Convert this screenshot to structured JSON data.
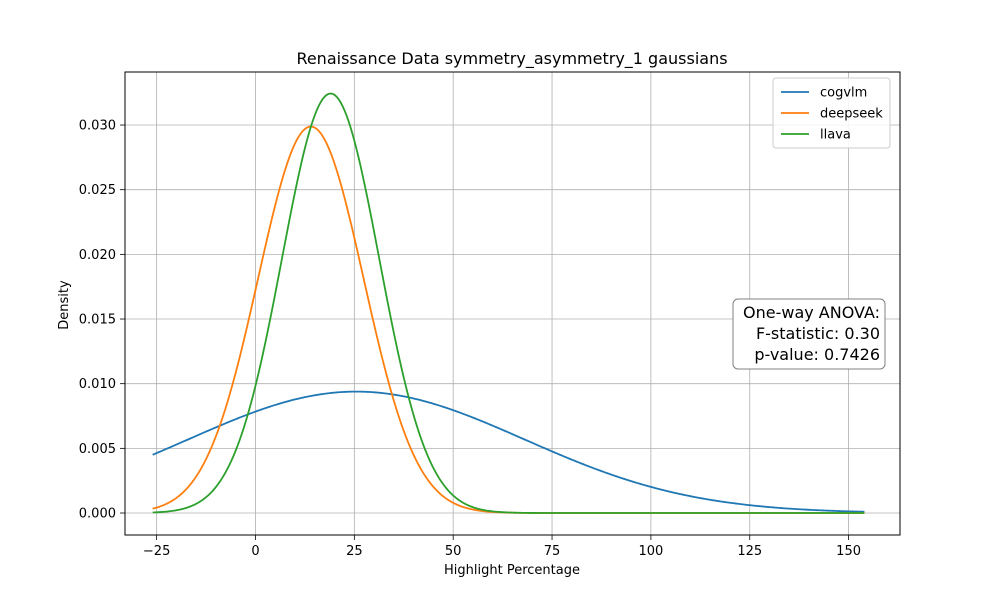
{
  "chart_data": {
    "type": "line",
    "title": "Renaissance Data symmetry_asymmetry_1 gaussians",
    "xlabel": "Highlight Percentage",
    "ylabel": "Density",
    "xlim": [
      -33,
      163
    ],
    "ylim": [
      -0.0017,
      0.0341
    ],
    "x_ticks": [
      -25,
      0,
      25,
      50,
      75,
      100,
      125,
      150
    ],
    "x_tick_labels": [
      "−25",
      "0",
      "25",
      "50",
      "75",
      "100",
      "125",
      "150"
    ],
    "y_ticks": [
      0.0,
      0.005,
      0.01,
      0.015,
      0.02,
      0.025,
      0.03
    ],
    "y_tick_labels": [
      "0.000",
      "0.005",
      "0.010",
      "0.015",
      "0.020",
      "0.025",
      "0.030"
    ],
    "grid": true,
    "legend_position": "top-right",
    "x_range": [
      -26,
      154
    ],
    "series": [
      {
        "name": "cogvlm",
        "color": "#1f77b4",
        "mean": 25.5,
        "std": 42.5
      },
      {
        "name": "deepseek",
        "color": "#ff7f0e",
        "mean": 14,
        "std": 13.35
      },
      {
        "name": "llava",
        "color": "#2ca02c",
        "mean": 19,
        "std": 12.3
      }
    ],
    "annotation": {
      "lines": [
        "One-way ANOVA:",
        "F-statistic: 0.30",
        "p-value: 0.7426"
      ],
      "position": "right"
    }
  }
}
